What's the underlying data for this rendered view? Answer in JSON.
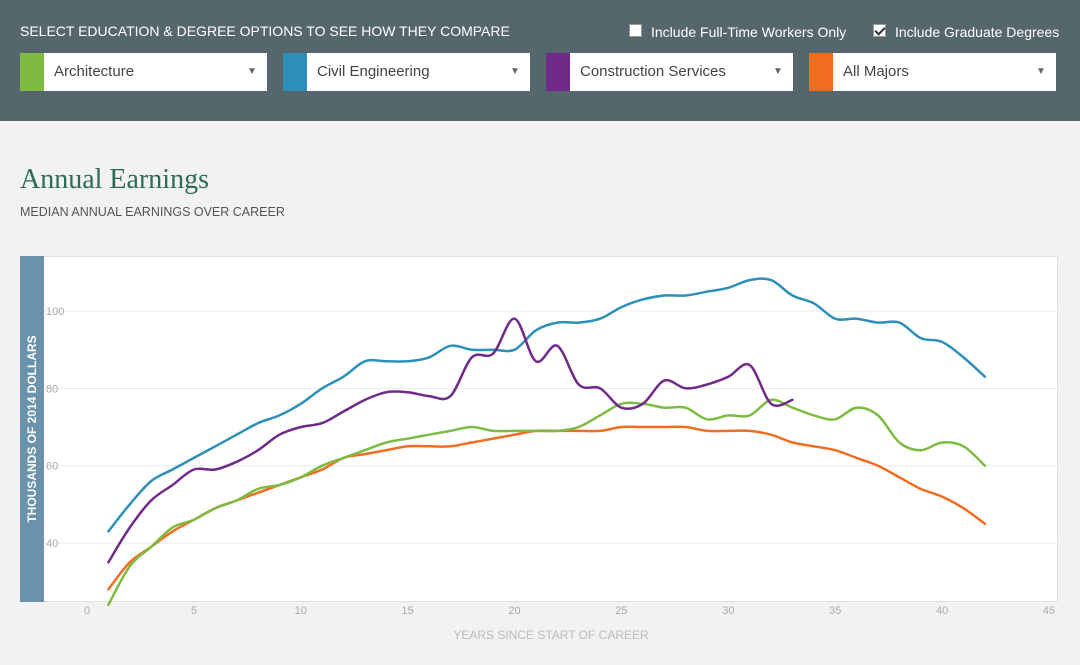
{
  "controls": {
    "heading": "SELECT EDUCATION & DEGREE OPTIONS TO SEE HOW THEY COMPARE",
    "fulltime": {
      "label": "Include Full-Time Workers Only",
      "checked": false
    },
    "graduate": {
      "label": "Include Graduate Degrees",
      "checked": true
    },
    "selects": [
      {
        "label": "Architecture",
        "color": "#7dbb42"
      },
      {
        "label": "Civil Engineering",
        "color": "#2e8fb8"
      },
      {
        "label": "Construction Services",
        "color": "#6f2a8a"
      },
      {
        "label": "All Majors",
        "color": "#f26d21"
      }
    ]
  },
  "chart_data": {
    "type": "line",
    "title": "Annual Earnings",
    "subtitle": "MEDIAN ANNUAL EARNINGS OVER CAREER",
    "xlabel": "YEARS SINCE START OF CAREER",
    "ylabel": "THOUSANDS OF 2014 DOLLARS",
    "xlim": [
      -3,
      46
    ],
    "ylim": [
      22,
      114
    ],
    "xticks": [
      0,
      5,
      10,
      15,
      20,
      25,
      30,
      35,
      40,
      45
    ],
    "yticks": [
      40,
      60,
      80,
      100
    ],
    "grid": true,
    "series": [
      {
        "name": "Architecture",
        "color": "#7dbb42",
        "points": [
          [
            1,
            24
          ],
          [
            2,
            34
          ],
          [
            3,
            39
          ],
          [
            4,
            44
          ],
          [
            5,
            46
          ],
          [
            6,
            49
          ],
          [
            7,
            51
          ],
          [
            8,
            54
          ],
          [
            9,
            55
          ],
          [
            10,
            57
          ],
          [
            11,
            60
          ],
          [
            12,
            62
          ],
          [
            13,
            64
          ],
          [
            14,
            66
          ],
          [
            15,
            67
          ],
          [
            16,
            68
          ],
          [
            17,
            69
          ],
          [
            18,
            70
          ],
          [
            19,
            69
          ],
          [
            20,
            69
          ],
          [
            21,
            69
          ],
          [
            22,
            69
          ],
          [
            23,
            70
          ],
          [
            24,
            73
          ],
          [
            25,
            76
          ],
          [
            26,
            76
          ],
          [
            27,
            75
          ],
          [
            28,
            75
          ],
          [
            29,
            72
          ],
          [
            30,
            73
          ],
          [
            31,
            73
          ],
          [
            32,
            77
          ],
          [
            33,
            75
          ],
          [
            34,
            73
          ],
          [
            35,
            72
          ],
          [
            36,
            75
          ],
          [
            37,
            73
          ],
          [
            38,
            66
          ],
          [
            39,
            64
          ],
          [
            40,
            66
          ],
          [
            41,
            65
          ],
          [
            42,
            60
          ]
        ]
      },
      {
        "name": "Civil Engineering",
        "color": "#2e8fb8",
        "points": [
          [
            1,
            43
          ],
          [
            2,
            50
          ],
          [
            3,
            56
          ],
          [
            4,
            59
          ],
          [
            5,
            62
          ],
          [
            6,
            65
          ],
          [
            7,
            68
          ],
          [
            8,
            71
          ],
          [
            9,
            73
          ],
          [
            10,
            76
          ],
          [
            11,
            80
          ],
          [
            12,
            83
          ],
          [
            13,
            87
          ],
          [
            14,
            87
          ],
          [
            15,
            87
          ],
          [
            16,
            88
          ],
          [
            17,
            91
          ],
          [
            18,
            90
          ],
          [
            19,
            90
          ],
          [
            20,
            90
          ],
          [
            21,
            95
          ],
          [
            22,
            97
          ],
          [
            23,
            97
          ],
          [
            24,
            98
          ],
          [
            25,
            101
          ],
          [
            26,
            103
          ],
          [
            27,
            104
          ],
          [
            28,
            104
          ],
          [
            29,
            105
          ],
          [
            30,
            106
          ],
          [
            31,
            108
          ],
          [
            32,
            108
          ],
          [
            33,
            104
          ],
          [
            34,
            102
          ],
          [
            35,
            98
          ],
          [
            36,
            98
          ],
          [
            37,
            97
          ],
          [
            38,
            97
          ],
          [
            39,
            93
          ],
          [
            40,
            92
          ],
          [
            41,
            88
          ],
          [
            42,
            83
          ]
        ]
      },
      {
        "name": "Construction Services",
        "color": "#6f2a8a",
        "points": [
          [
            1,
            35
          ],
          [
            2,
            44
          ],
          [
            3,
            51
          ],
          [
            4,
            55
          ],
          [
            5,
            59
          ],
          [
            6,
            59
          ],
          [
            7,
            61
          ],
          [
            8,
            64
          ],
          [
            9,
            68
          ],
          [
            10,
            70
          ],
          [
            11,
            71
          ],
          [
            12,
            74
          ],
          [
            13,
            77
          ],
          [
            14,
            79
          ],
          [
            15,
            79
          ],
          [
            16,
            78
          ],
          [
            17,
            78
          ],
          [
            18,
            88
          ],
          [
            19,
            89
          ],
          [
            20,
            98
          ],
          [
            21,
            87
          ],
          [
            22,
            91
          ],
          [
            23,
            81
          ],
          [
            24,
            80
          ],
          [
            25,
            75
          ],
          [
            26,
            76
          ],
          [
            27,
            82
          ],
          [
            28,
            80
          ],
          [
            29,
            81
          ],
          [
            30,
            83
          ],
          [
            31,
            86
          ],
          [
            32,
            76
          ],
          [
            33,
            77
          ]
        ]
      },
      {
        "name": "All Majors",
        "color": "#f26d21",
        "points": [
          [
            1,
            28
          ],
          [
            2,
            35
          ],
          [
            3,
            39
          ],
          [
            4,
            43
          ],
          [
            5,
            46
          ],
          [
            6,
            49
          ],
          [
            7,
            51
          ],
          [
            8,
            53
          ],
          [
            9,
            55
          ],
          [
            10,
            57
          ],
          [
            11,
            59
          ],
          [
            12,
            62
          ],
          [
            13,
            63
          ],
          [
            14,
            64
          ],
          [
            15,
            65
          ],
          [
            16,
            65
          ],
          [
            17,
            65
          ],
          [
            18,
            66
          ],
          [
            19,
            67
          ],
          [
            20,
            68
          ],
          [
            21,
            69
          ],
          [
            22,
            69
          ],
          [
            23,
            69
          ],
          [
            24,
            69
          ],
          [
            25,
            70
          ],
          [
            26,
            70
          ],
          [
            27,
            70
          ],
          [
            28,
            70
          ],
          [
            29,
            69
          ],
          [
            30,
            69
          ],
          [
            31,
            69
          ],
          [
            32,
            68
          ],
          [
            33,
            66
          ],
          [
            34,
            65
          ],
          [
            35,
            64
          ],
          [
            36,
            62
          ],
          [
            37,
            60
          ],
          [
            38,
            57
          ],
          [
            39,
            54
          ],
          [
            40,
            52
          ],
          [
            41,
            49
          ],
          [
            42,
            45
          ]
        ]
      }
    ]
  }
}
